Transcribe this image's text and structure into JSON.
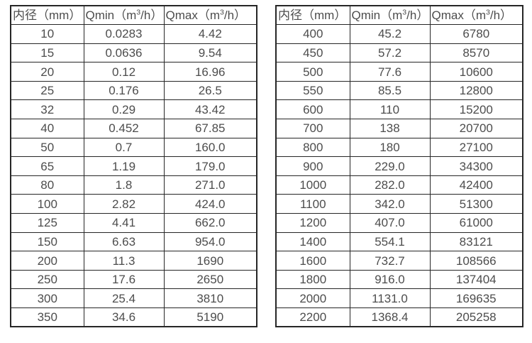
{
  "page": {
    "background": "#ffffff",
    "text_color": "#4d4d4d",
    "border_color": "#262626"
  },
  "tables": [
    {
      "name": "small-diameters",
      "headers": [
        {
          "prefix": "内径（mm）",
          "sup": "",
          "suffix": ""
        },
        {
          "prefix": "Qmin（m",
          "sup": "3",
          "suffix": "/h）"
        },
        {
          "prefix": "Qmax（m",
          "sup": "3",
          "suffix": "/h）"
        }
      ],
      "rows": [
        [
          "10",
          "0.0283",
          "4.42"
        ],
        [
          "15",
          "0.0636",
          "9.54"
        ],
        [
          "20",
          "0.12",
          "16.96"
        ],
        [
          "25",
          "0.176",
          "26.5"
        ],
        [
          "32",
          "0.29",
          "43.42"
        ],
        [
          "40",
          "0.452",
          "67.85"
        ],
        [
          "50",
          "0.7",
          "160.0"
        ],
        [
          "65",
          "1.19",
          "179.0"
        ],
        [
          "80",
          "1.8",
          "271.0"
        ],
        [
          "100",
          "2.82",
          "424.0"
        ],
        [
          "125",
          "4.41",
          "662.0"
        ],
        [
          "150",
          "6.63",
          "954.0"
        ],
        [
          "200",
          "11.3",
          "1690"
        ],
        [
          "250",
          "17.6",
          "2650"
        ],
        [
          "300",
          "25.4",
          "3810"
        ],
        [
          "350",
          "34.6",
          "5190"
        ]
      ]
    },
    {
      "name": "large-diameters",
      "headers": [
        {
          "prefix": "内径（mm）",
          "sup": "",
          "suffix": ""
        },
        {
          "prefix": "Qmin（m",
          "sup": "3",
          "suffix": "/h）"
        },
        {
          "prefix": "Qmax（m",
          "sup": "3",
          "suffix": "/h）"
        }
      ],
      "rows": [
        [
          "400",
          "45.2",
          "6780"
        ],
        [
          "450",
          "57.2",
          "8570"
        ],
        [
          "500",
          "77.6",
          "10600"
        ],
        [
          "550",
          "85.5",
          "12800"
        ],
        [
          "600",
          "110",
          "15200"
        ],
        [
          "700",
          "138",
          "20700"
        ],
        [
          "800",
          "180",
          "27100"
        ],
        [
          "900",
          "229.0",
          "34300"
        ],
        [
          "1000",
          "282.0",
          "42400"
        ],
        [
          "1100",
          "342.0",
          "51300"
        ],
        [
          "1200",
          "407.0",
          "61000"
        ],
        [
          "1400",
          "554.1",
          "83121"
        ],
        [
          "1600",
          "732.7",
          "108566"
        ],
        [
          "1800",
          "916.0",
          "137404"
        ],
        [
          "2000",
          "1131.0",
          "169635"
        ],
        [
          "2200",
          "1368.4",
          "205258"
        ]
      ]
    }
  ]
}
